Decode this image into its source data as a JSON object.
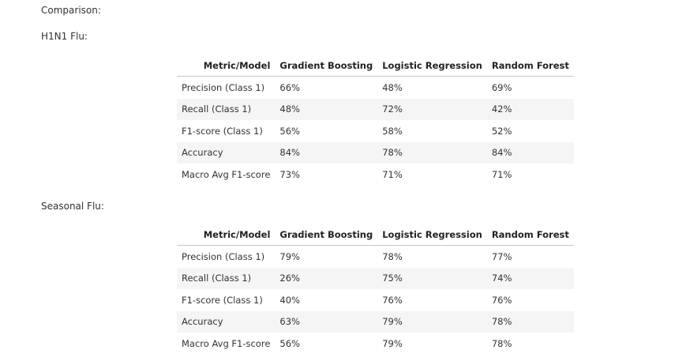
{
  "heading": "Comparison:",
  "tables": [
    {
      "title": "H1N1 Flu:",
      "columns": [
        "Metric/Model",
        "Gradient Boosting",
        "Logistic Regression",
        "Random Forest"
      ],
      "rows": [
        [
          "Precision (Class 1)",
          "66%",
          "48%",
          "69%"
        ],
        [
          "Recall (Class 1)",
          "48%",
          "72%",
          "42%"
        ],
        [
          "F1-score (Class 1)",
          "56%",
          "58%",
          "52%"
        ],
        [
          "Accuracy",
          "84%",
          "78%",
          "84%"
        ],
        [
          "Macro Avg F1-score",
          "73%",
          "71%",
          "71%"
        ]
      ]
    },
    {
      "title": "Seasonal Flu:",
      "columns": [
        "Metric/Model",
        "Gradient Boosting",
        "Logistic Regression",
        "Random Forest"
      ],
      "rows": [
        [
          "Precision (Class 1)",
          "79%",
          "78%",
          "77%"
        ],
        [
          "Recall (Class 1)",
          "26%",
          "75%",
          "74%"
        ],
        [
          "F1-score (Class 1)",
          "40%",
          "76%",
          "76%"
        ],
        [
          "Accuracy",
          "63%",
          "79%",
          "78%"
        ],
        [
          "Macro Avg F1-score",
          "56%",
          "79%",
          "78%"
        ]
      ]
    }
  ]
}
